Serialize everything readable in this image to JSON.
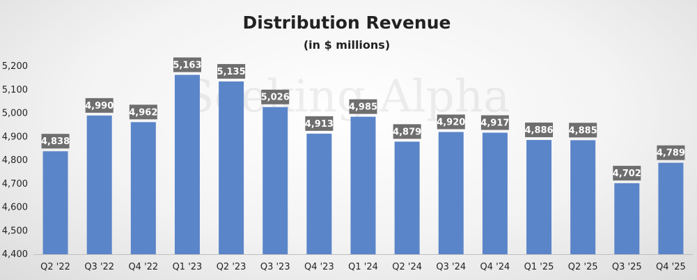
{
  "chart_data": {
    "type": "bar",
    "title": "Distribution Revenue",
    "subtitle": "(in $ millions)",
    "xlabel": "",
    "ylabel": "",
    "categories": [
      "Q2 '22",
      "Q3 '22",
      "Q4 '22",
      "Q1 '23",
      "Q2 '23",
      "Q3 '23",
      "Q4 '23",
      "Q1 '24",
      "Q2 '24",
      "Q3 '24",
      "Q4 '24",
      "Q1 '25",
      "Q2 '25",
      "Q3 '25",
      "Q4 '25"
    ],
    "values": [
      4838,
      4990,
      4962,
      5163,
      5135,
      5026,
      4913,
      4985,
      4879,
      4920,
      4917,
      4886,
      4885,
      4702,
      4789
    ],
    "value_labels": [
      "4,838",
      "4,990",
      "4,962",
      "5,163",
      "5,135",
      "5,026",
      "4,913",
      "4,985",
      "4,879",
      "4,920",
      "4,917",
      "4,886",
      "4,885",
      "4,702",
      "4,789"
    ],
    "ylim": [
      4400,
      5200
    ],
    "yticks": [
      4400,
      4500,
      4600,
      4700,
      4800,
      4900,
      5000,
      5100,
      5200
    ],
    "ytick_labels": [
      "4,400",
      "4,500",
      "4,600",
      "4,700",
      "4,800",
      "4,900",
      "5,000",
      "5,100",
      "5,200"
    ],
    "grid": false,
    "legend": "none",
    "bar_color": "#5b85c9",
    "label_box_color": "#6e6e6e",
    "watermark": "Seeking Alpha"
  }
}
